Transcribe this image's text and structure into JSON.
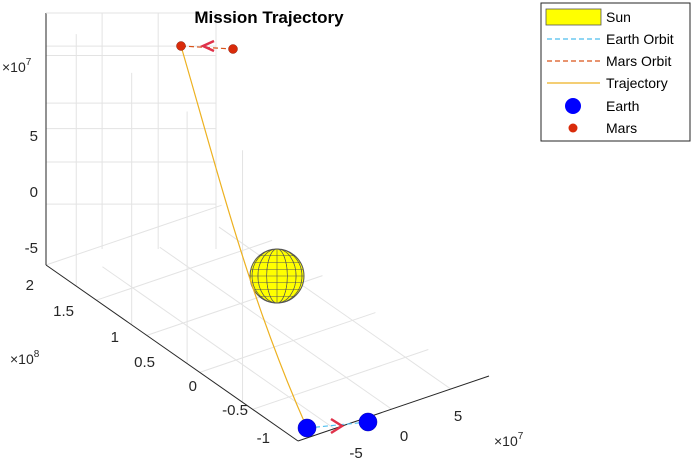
{
  "chart_data": {
    "type": "line-3d",
    "title": "Mission Trajectory",
    "axes": {
      "x": {
        "multiplier": "×10",
        "exponent": "7",
        "ticks": [
          "-5",
          "0",
          "5"
        ]
      },
      "y": {
        "multiplier": "×10",
        "exponent": "8",
        "ticks": [
          "-1",
          "-0.5",
          "0",
          "0.5",
          "1",
          "1.5",
          "2"
        ]
      },
      "z": {
        "multiplier": "×10",
        "exponent": "7",
        "ticks": [
          "-5",
          "0",
          "5"
        ]
      }
    },
    "grid": true,
    "legend_position": "outside-top-right",
    "legend": [
      {
        "label": "Sun",
        "symbol": "patch",
        "color": "#ffff00"
      },
      {
        "label": "Earth Orbit",
        "symbol": "dashed-line",
        "color": "#4dbeee"
      },
      {
        "label": "Mars Orbit",
        "symbol": "dashed-line",
        "color": "#d95319"
      },
      {
        "label": "Trajectory",
        "symbol": "line",
        "color": "#edb120"
      },
      {
        "label": "Earth",
        "symbol": "marker",
        "color": "#0000ff"
      },
      {
        "label": "Mars",
        "symbol": "marker",
        "color": "#d92b0a"
      }
    ],
    "colors": {
      "sun": "#ffff00",
      "earth_orbit": "#4dbeee",
      "mars_orbit": "#d95319",
      "trajectory": "#edb120",
      "earth": "#0000ff",
      "mars": "#d92b0a",
      "arrow": "#e0324a"
    }
  }
}
